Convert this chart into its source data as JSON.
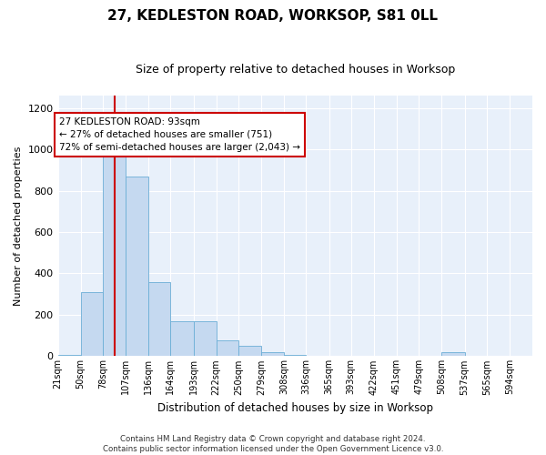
{
  "title": "27, KEDLESTON ROAD, WORKSOP, S81 0LL",
  "subtitle": "Size of property relative to detached houses in Worksop",
  "xlabel": "Distribution of detached houses by size in Worksop",
  "ylabel": "Number of detached properties",
  "bar_color": "#c5d9f0",
  "bar_edge_color": "#6baed6",
  "background_color": "#e8f0fa",
  "grid_color": "#ffffff",
  "annotation_box_color": "#cc0000",
  "annotation_text": "27 KEDLESTON ROAD: 93sqm\n← 27% of detached houses are smaller (751)\n72% of semi-detached houses are larger (2,043) →",
  "vline_color": "#cc0000",
  "bin_edges": [
    21,
    50,
    78,
    107,
    136,
    164,
    193,
    222,
    250,
    279,
    308,
    336,
    365,
    393,
    422,
    451,
    479,
    508,
    537,
    565,
    594
  ],
  "bin_labels": [
    "21sqm",
    "50sqm",
    "78sqm",
    "107sqm",
    "136sqm",
    "164sqm",
    "193sqm",
    "222sqm",
    "250sqm",
    "279sqm",
    "308sqm",
    "336sqm",
    "365sqm",
    "393sqm",
    "422sqm",
    "451sqm",
    "479sqm",
    "508sqm",
    "537sqm",
    "565sqm",
    "594sqm"
  ],
  "values": [
    5,
    310,
    980,
    870,
    360,
    170,
    170,
    75,
    50,
    20,
    5,
    0,
    0,
    0,
    0,
    0,
    0,
    20,
    0,
    0
  ],
  "vline_bin_index": 2,
  "ylim": [
    0,
    1260
  ],
  "yticks": [
    0,
    200,
    400,
    600,
    800,
    1000,
    1200
  ],
  "footnote": "Contains HM Land Registry data © Crown copyright and database right 2024.\nContains public sector information licensed under the Open Government Licence v3.0."
}
